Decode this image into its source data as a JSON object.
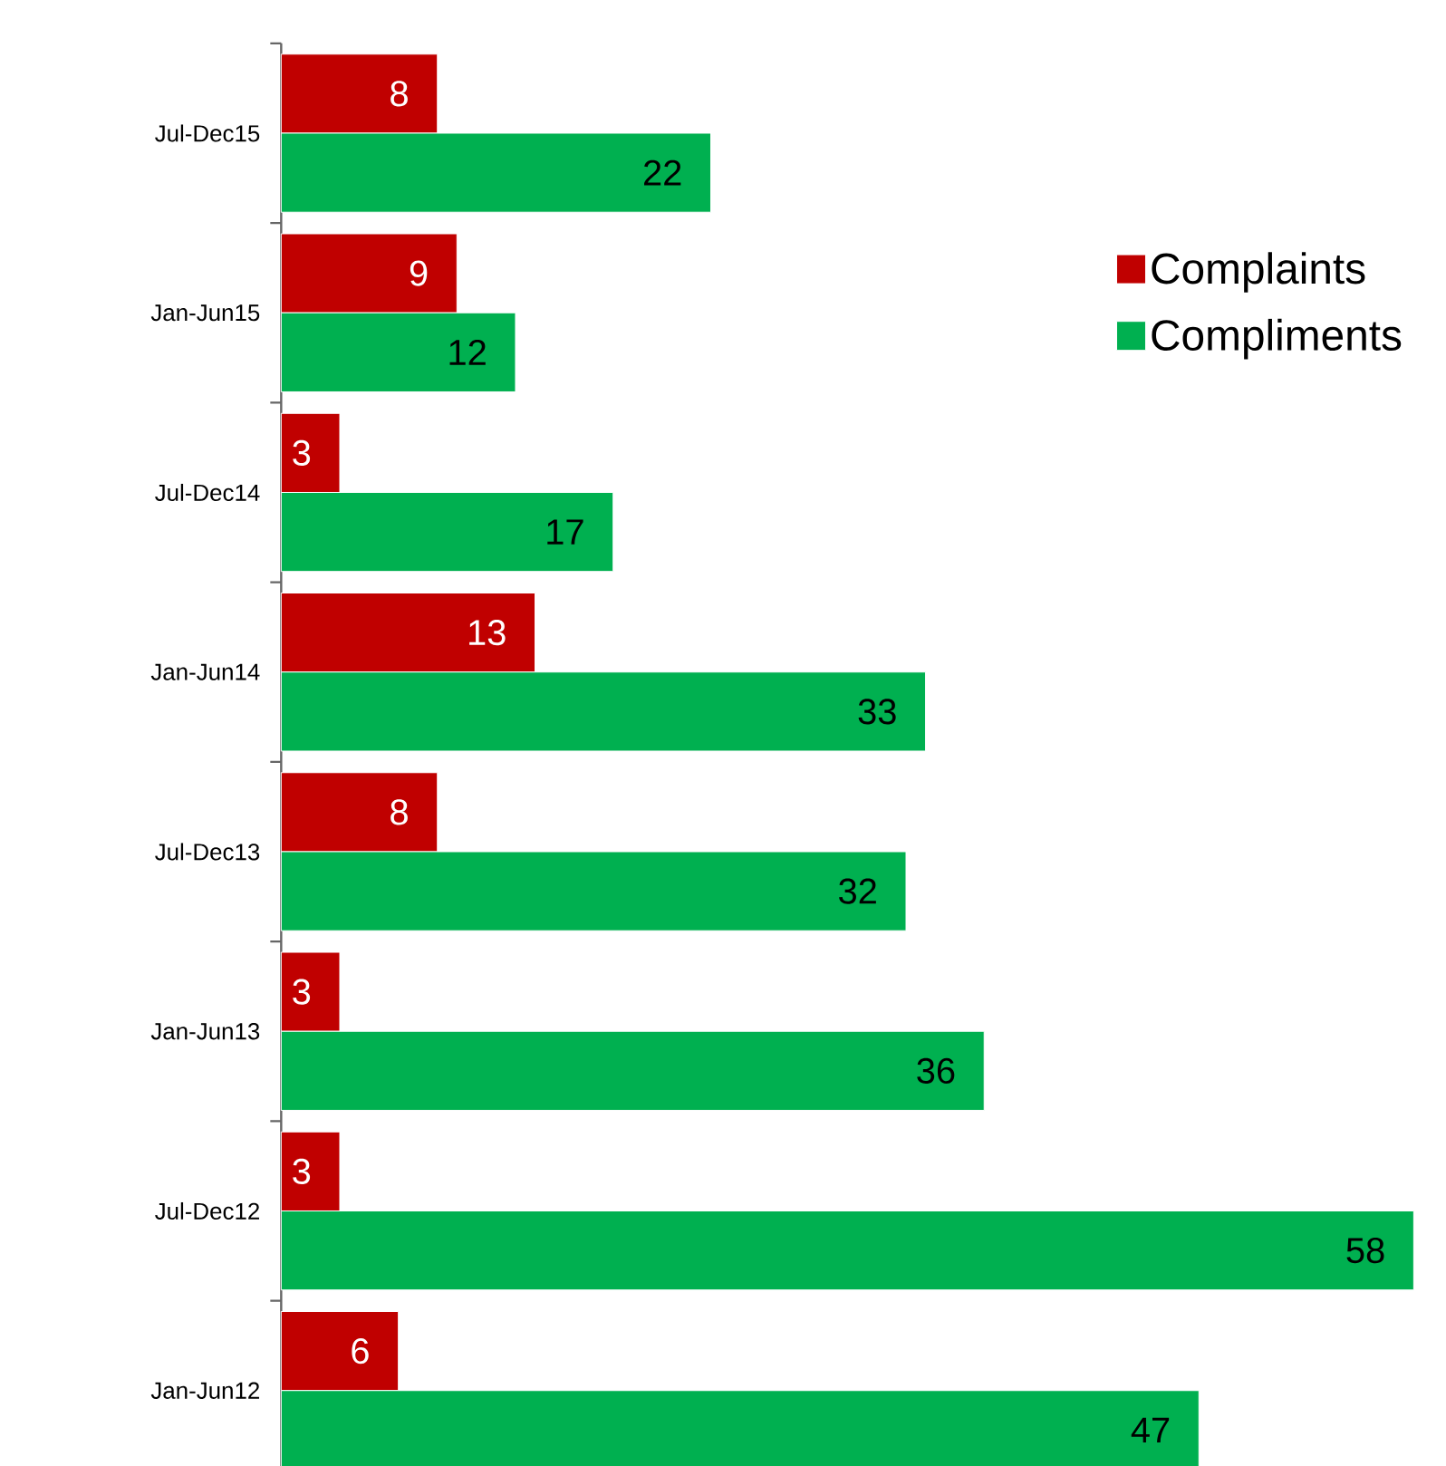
{
  "chart_data": {
    "type": "bar",
    "orientation": "horizontal",
    "categories": [
      "Jul-Dec15",
      "Jan-Jun15",
      "Jul-Dec14",
      "Jan-Jun14",
      "Jul-Dec13",
      "Jan-Jun13",
      "Jul-Dec12",
      "Jan-Jun12"
    ],
    "series": [
      {
        "name": "Complaints",
        "color": "#c00000",
        "values": [
          8,
          9,
          3,
          13,
          8,
          3,
          3,
          6
        ]
      },
      {
        "name": "Compliments",
        "color": "#00b050",
        "values": [
          22,
          12,
          17,
          33,
          32,
          36,
          58,
          47
        ]
      }
    ],
    "data_labels": true,
    "legend": "right",
    "tick_labels": "y"
  }
}
